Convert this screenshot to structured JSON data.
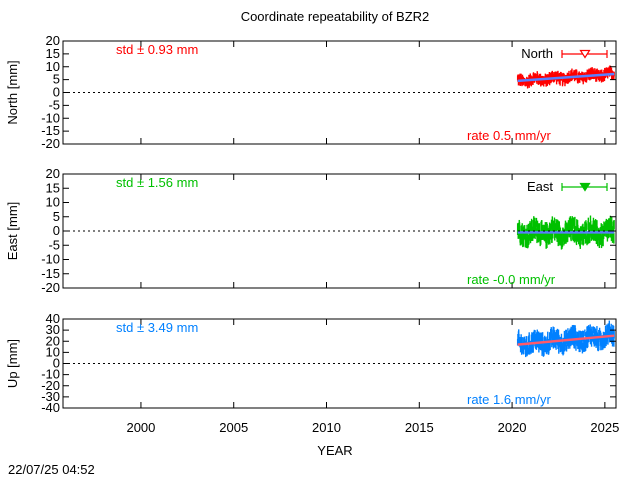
{
  "title": "Coordinate repeatability of BZR2",
  "timestamp": "22/07/25 04:52",
  "colors": {
    "north": "#ff0000",
    "east": "#00c000",
    "up": "#0080ff",
    "trend_north": "#5a7fff",
    "trend_east": "#5a7fff",
    "trend_up": "#ff5a6a"
  },
  "chart_data": [
    {
      "type": "scatter",
      "name": "North",
      "ylabel": "North [mm]",
      "xlabel": "",
      "ylim": [
        -20,
        20
      ],
      "yticks": [
        20,
        15,
        10,
        5,
        0,
        -5,
        -10,
        -15,
        -20
      ],
      "xlim": [
        1995.8,
        2025.6
      ],
      "xticks": [
        2000,
        2005,
        2010,
        2015,
        2020,
        2025
      ],
      "std_label": "std ± 0.93 mm",
      "rate_label": "rate  0.5 mm/yr",
      "legend": "North",
      "legend_position": "top-right",
      "data_start": 2020.3,
      "data_end": 2025.5,
      "trend": {
        "start": [
          2020.3,
          4.5
        ],
        "end": [
          2025.5,
          7.2
        ]
      },
      "spread": 2.0,
      "zero_line": true
    },
    {
      "type": "scatter",
      "name": "East",
      "ylabel": "East [mm]",
      "xlabel": "",
      "ylim": [
        -20,
        20
      ],
      "yticks": [
        20,
        15,
        10,
        5,
        0,
        -5,
        -10,
        -15,
        -20
      ],
      "xlim": [
        1995.8,
        2025.6
      ],
      "xticks": [
        2000,
        2005,
        2010,
        2015,
        2020,
        2025
      ],
      "std_label": "std ± 1.56 mm",
      "rate_label": "rate -0.0 mm/yr",
      "legend": "East",
      "legend_position": "top-right",
      "data_start": 2020.3,
      "data_end": 2025.5,
      "trend": {
        "start": [
          2020.3,
          -0.5
        ],
        "end": [
          2025.5,
          -0.5
        ]
      },
      "spread": 3.5,
      "zero_line": true
    },
    {
      "type": "scatter",
      "name": "Up",
      "ylabel": "Up [mm]",
      "xlabel": "YEAR",
      "ylim": [
        -40,
        40
      ],
      "yticks": [
        40,
        30,
        20,
        10,
        0,
        -10,
        -20,
        -30,
        -40
      ],
      "xlim": [
        1995.8,
        2025.6
      ],
      "xticks": [
        2000,
        2005,
        2010,
        2015,
        2020,
        2025
      ],
      "std_label": "std ± 3.49 mm",
      "rate_label": "rate  1.6 mm/yr",
      "legend": "",
      "legend_position": "",
      "data_start": 2020.3,
      "data_end": 2025.5,
      "trend": {
        "start": [
          2020.3,
          17
        ],
        "end": [
          2025.5,
          25
        ]
      },
      "spread": 8,
      "zero_line": true
    }
  ]
}
